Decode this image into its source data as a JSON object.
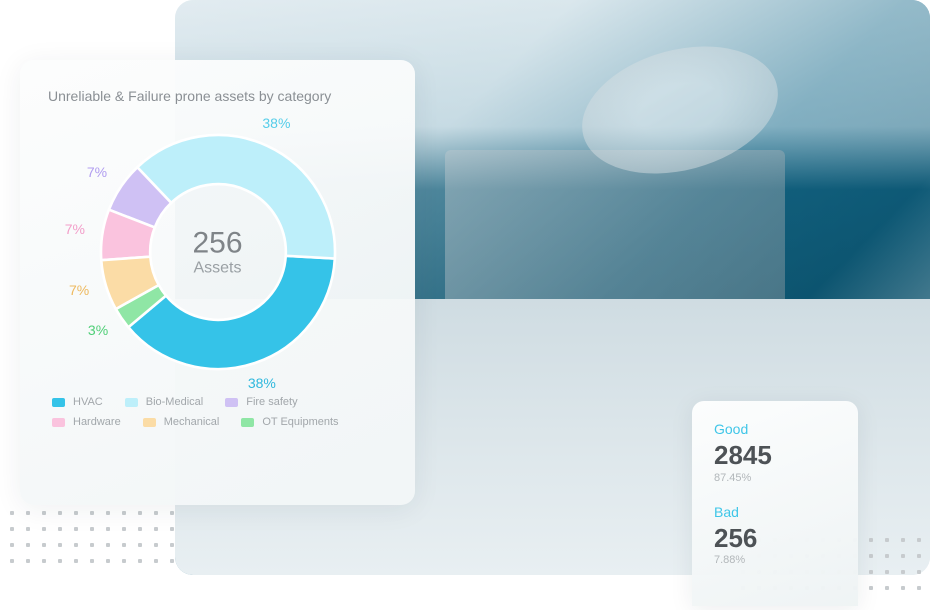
{
  "chart_card": {
    "title": "Unreliable & Failure prone assets by category",
    "center_value": "256",
    "center_label": "Assets",
    "donut": {
      "type": "donut",
      "inner_radius_pct": 58,
      "segments": [
        {
          "name": "HVAC",
          "value": 38,
          "label": "38%",
          "color": "#35c3e8"
        },
        {
          "name": "Bio-Medical",
          "value": 38,
          "label": "38%",
          "color": "#bdeffa"
        },
        {
          "name": "Fire safety",
          "value": 7,
          "label": "7%",
          "color": "#cfc1f4"
        },
        {
          "name": "Hardware",
          "value": 7,
          "label": "7%",
          "color": "#fac3de"
        },
        {
          "name": "Mechanical",
          "value": 7,
          "label": "7%",
          "color": "#fbdca6"
        },
        {
          "name": "OT Equipments",
          "value": 3,
          "label": "3%",
          "color": "#8fe6a5"
        }
      ],
      "label_colors": {
        "HVAC": "#2fb8dd",
        "Bio-Medical": "#55cde9",
        "Fire safety": "#b19ef0",
        "Hardware": "#f29ec9",
        "Mechanical": "#eeb95f",
        "OT Equipments": "#4fcf77"
      }
    },
    "legend": [
      {
        "label": "HVAC",
        "color": "#35c3e8"
      },
      {
        "label": "Bio-Medical",
        "color": "#bdeffa"
      },
      {
        "label": "Fire safety",
        "color": "#cfc1f4"
      },
      {
        "label": "Hardware",
        "color": "#fac3de"
      },
      {
        "label": "Mechanical",
        "color": "#fbdca6"
      },
      {
        "label": "OT Equipments",
        "color": "#8fe6a5"
      }
    ]
  },
  "stats_card": {
    "good": {
      "label": "Good",
      "value": "2845",
      "pct": "87.45%"
    },
    "bad": {
      "label": "Bad",
      "value": "256",
      "pct": "7.88%"
    }
  },
  "style": {
    "card_bg_start": "#fcfdfd",
    "card_bg_end": "#f2f6f7",
    "title_color": "#8a8f94",
    "center_num_color": "#7f8488",
    "center_lbl_color": "#9aa0a4",
    "legend_text_color": "#a2a7ab",
    "stat_label_color": "#3fc6e8",
    "stat_value_color": "#4d5256",
    "stat_pct_color": "#b2b7ba"
  }
}
